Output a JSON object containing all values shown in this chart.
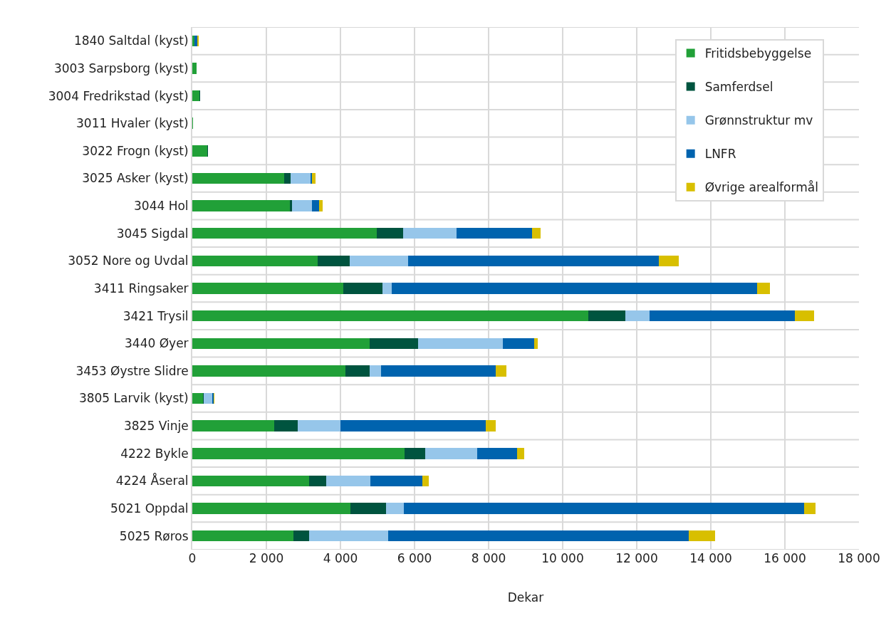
{
  "chart_data": {
    "type": "bar",
    "orientation": "horizontal",
    "stacked": true,
    "xlabel": "Dekar",
    "categories": [
      "1840 Saltdal (kyst)",
      "3003 Sarpsborg (kyst)",
      "3004 Fredrikstad (kyst)",
      "3011 Hvaler (kyst)",
      "3022 Frogn (kyst)",
      "3025 Asker (kyst)",
      "3044 Hol",
      "3045 Sigdal",
      "3052 Nore og Uvdal",
      "3411 Ringsaker",
      "3421 Trysil",
      "3440 Øyer",
      "3453 Øystre Slidre",
      "3805 Larvik (kyst)",
      "3825 Vinje",
      "4222 Bykle",
      "4224 Åseral",
      "5021 Oppdal",
      "5025 Røros"
    ],
    "series": [
      {
        "name": "Fritidsbebyggelse",
        "color": "#21a038",
        "values": [
          50,
          115,
          195,
          10,
          400,
          2480,
          2630,
          4990,
          3380,
          4070,
          10700,
          4790,
          4140,
          280,
          2210,
          5740,
          3150,
          4270,
          2730
        ]
      },
      {
        "name": "Samferdsel",
        "color": "#00543f",
        "values": [
          0,
          0,
          15,
          0,
          15,
          180,
          65,
          710,
          870,
          1060,
          1000,
          1300,
          650,
          30,
          640,
          555,
          470,
          960,
          420
        ]
      },
      {
        "name": "Grønnstruktur mv",
        "color": "#96c6ea",
        "values": [
          null,
          0,
          0,
          0,
          15,
          530,
          545,
          1440,
          1570,
          255,
          650,
          2300,
          300,
          235,
          1150,
          1400,
          1180,
          480,
          2130
        ]
      },
      {
        "name": "LNFR",
        "color": "#0063ae",
        "values": [
          90,
          0,
          0,
          0,
          0,
          50,
          180,
          2030,
          6780,
          9870,
          3910,
          840,
          3100,
          40,
          3930,
          1070,
          1420,
          10810,
          8130
        ]
      },
      {
        "name": "Øvrige arealformål",
        "color": "#d8bf00",
        "values": [
          25,
          0,
          0,
          0,
          0,
          90,
          95,
          235,
          525,
          345,
          530,
          100,
          290,
          15,
          270,
          200,
          170,
          300,
          700
        ]
      }
    ],
    "xlim": [
      0,
      18000
    ],
    "xticks": [
      0,
      {
        "value": 2000,
        "label": "2 000"
      },
      {
        "value": 4000,
        "label": "4 000"
      },
      {
        "value": 6000,
        "label": "6 000"
      },
      {
        "value": 8000,
        "label": "8 000"
      },
      {
        "value": 10000,
        "label": "10 000"
      },
      {
        "value": 12000,
        "label": "12 000"
      },
      {
        "value": 14000,
        "label": "14 000"
      },
      {
        "value": 16000,
        "label": "16 000"
      },
      {
        "value": 18000,
        "label": "18 000"
      }
    ],
    "grid": true,
    "legend": "top right"
  }
}
